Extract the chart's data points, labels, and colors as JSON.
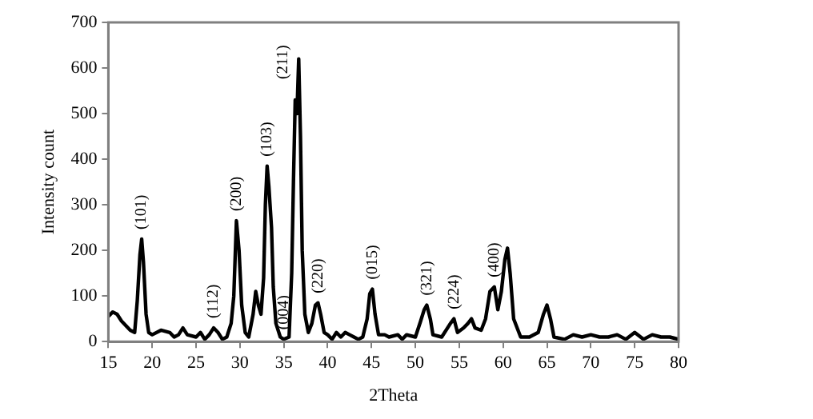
{
  "chart_data": {
    "type": "line",
    "xlabel": "2Theta",
    "ylabel": "Intensity count",
    "xlim": [
      15,
      80
    ],
    "xticks": [
      15,
      20,
      25,
      30,
      35,
      40,
      45,
      50,
      55,
      60,
      65,
      70,
      75,
      80
    ],
    "ylim": [
      0,
      700
    ],
    "yticks": [
      0,
      100,
      200,
      300,
      400,
      500,
      600,
      700
    ],
    "grid": false,
    "legend": false,
    "marker": "none",
    "line_style": "solid",
    "series": [
      {
        "color": "#000000",
        "x": [
          15,
          15.5,
          16,
          16.5,
          17,
          17.5,
          18,
          18.3,
          18.6,
          18.8,
          19.0,
          19.3,
          19.6,
          20,
          21,
          22,
          22.5,
          23,
          23.5,
          24,
          25,
          25.5,
          26,
          26.5,
          27,
          27.5,
          28,
          28.5,
          29,
          29.3,
          29.6,
          29.9,
          30.2,
          30.6,
          31,
          31.5,
          31.8,
          32.1,
          32.4,
          32.7,
          32.9,
          33.1,
          33.3,
          33.6,
          33.8,
          34.1,
          34.6,
          35,
          35.6,
          35.9,
          36.1,
          36.3,
          36.5,
          36.7,
          36.9,
          37.1,
          37.4,
          37.8,
          38.2,
          38.6,
          38.9,
          39.2,
          39.6,
          40,
          40.5,
          41,
          41.5,
          42,
          42.5,
          43,
          43.5,
          44,
          44.5,
          44.8,
          45.1,
          45.4,
          45.8,
          46.5,
          47,
          48,
          48.5,
          49,
          50,
          50.6,
          51,
          51.3,
          51.7,
          52,
          53,
          54,
          54.4,
          54.8,
          55.5,
          56,
          56.4,
          56.8,
          57.5,
          58,
          58.5,
          59,
          59.4,
          59.8,
          60.2,
          60.5,
          60.8,
          61.2,
          62,
          63,
          64,
          64.6,
          65,
          65.4,
          65.8,
          67,
          68,
          69,
          70,
          71,
          72,
          73,
          74,
          75,
          76,
          77,
          78,
          79,
          80
        ],
        "values": [
          55,
          65,
          60,
          45,
          35,
          25,
          20,
          90,
          190,
          225,
          175,
          60,
          20,
          15,
          25,
          20,
          10,
          15,
          30,
          15,
          10,
          20,
          5,
          15,
          30,
          20,
          5,
          10,
          40,
          100,
          265,
          200,
          80,
          20,
          10,
          60,
          110,
          80,
          60,
          140,
          300,
          385,
          340,
          250,
          120,
          40,
          10,
          5,
          10,
          150,
          350,
          530,
          500,
          620,
          450,
          200,
          60,
          20,
          40,
          80,
          85,
          60,
          20,
          15,
          5,
          20,
          10,
          20,
          15,
          10,
          5,
          10,
          50,
          105,
          115,
          60,
          15,
          15,
          10,
          15,
          5,
          15,
          10,
          45,
          70,
          80,
          50,
          15,
          10,
          40,
          50,
          20,
          30,
          40,
          50,
          30,
          25,
          50,
          110,
          120,
          70,
          110,
          180,
          205,
          150,
          50,
          10,
          10,
          20,
          60,
          80,
          50,
          10,
          5,
          15,
          10,
          15,
          10,
          10,
          15,
          5,
          20,
          5,
          15,
          10,
          10,
          5
        ]
      }
    ],
    "annotations": [
      {
        "text": "(101)",
        "x": 18.8,
        "y": 225
      },
      {
        "text": "(112)",
        "x": 27,
        "y": 30
      },
      {
        "text": "(200)",
        "x": 29.6,
        "y": 265
      },
      {
        "text": "(103)",
        "x": 33.1,
        "y": 385
      },
      {
        "text": "(004)",
        "x": 35,
        "y": 5
      },
      {
        "text": "(211)",
        "x": 36.7,
        "y": 620
      },
      {
        "text": "(220)",
        "x": 38.9,
        "y": 85
      },
      {
        "text": "(015)",
        "x": 45.1,
        "y": 115
      },
      {
        "text": "(321)",
        "x": 51.3,
        "y": 80
      },
      {
        "text": "(224)",
        "x": 54.4,
        "y": 50
      },
      {
        "text": "(400)",
        "x": 59,
        "y": 120
      }
    ]
  }
}
